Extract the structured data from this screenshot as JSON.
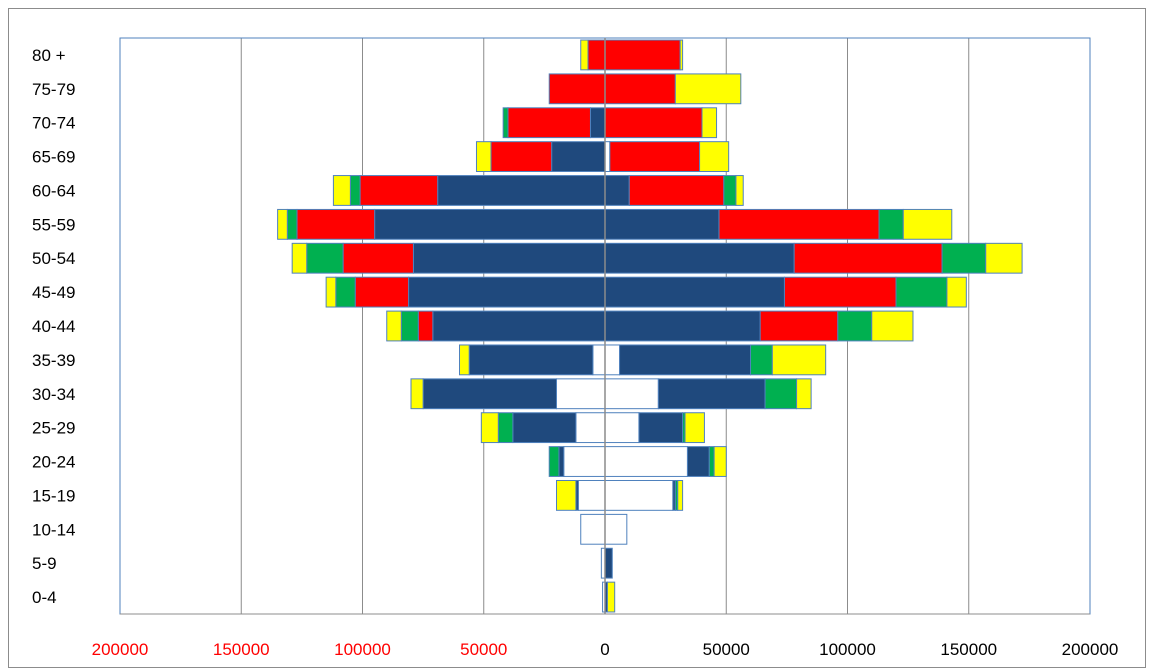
{
  "chart_data": {
    "type": "bar",
    "subtype": "population-pyramid-stacked",
    "orientation": "horizontal",
    "title": "",
    "xlabel": "",
    "ylabel": "",
    "xlim": [
      -200000,
      200000
    ],
    "grid": "vertical-major",
    "legend": "none",
    "categories": [
      "0-4",
      "5-9",
      "10-14",
      "15-19",
      "20-24",
      "25-29",
      "30-34",
      "35-39",
      "40-44",
      "45-49",
      "50-54",
      "55-59",
      "60-64",
      "65-69",
      "70-74",
      "75-79",
      "80 +"
    ],
    "x_ticks_left": [
      "200000",
      "150000",
      "100000",
      "50000"
    ],
    "x_ticks_right": [
      "0",
      "50000",
      "100000",
      "150000",
      "200000"
    ],
    "colors": {
      "white": "#ffffff",
      "blue": "#1f497d",
      "red": "#ff0000",
      "green": "#00b050",
      "yellow": "#ffff00",
      "left_tick_text": "#ff0000",
      "right_tick_text": "#000000",
      "outline": "#4f81bd",
      "gridline": "#8c8c8c"
    },
    "left_side": {
      "series": [
        {
          "color": "white",
          "values": [
            1000,
            1500,
            10000,
            11000,
            17000,
            12000,
            20000,
            5000,
            0,
            0,
            0,
            0,
            0,
            0,
            0,
            0,
            0
          ]
        },
        {
          "color": "blue",
          "values": [
            0,
            0,
            0,
            1000,
            2000,
            26000,
            55000,
            51000,
            71000,
            81000,
            79000,
            95000,
            69000,
            22000,
            6000,
            0,
            0
          ]
        },
        {
          "color": "red",
          "values": [
            0,
            0,
            0,
            0,
            0,
            0,
            0,
            0,
            6000,
            22000,
            29000,
            32000,
            32000,
            25000,
            34000,
            23000,
            7000
          ]
        },
        {
          "color": "green",
          "values": [
            0,
            0,
            0,
            0,
            4000,
            6000,
            0,
            0,
            7000,
            8000,
            15000,
            4000,
            4000,
            0,
            2000,
            0,
            0
          ]
        },
        {
          "color": "yellow",
          "values": [
            0,
            0,
            0,
            8000,
            0,
            7000,
            5000,
            4000,
            6000,
            4000,
            6000,
            4000,
            7000,
            6000,
            0,
            0,
            3000
          ]
        }
      ]
    },
    "right_side": {
      "series": [
        {
          "color": "white",
          "values": [
            0,
            0,
            9000,
            28000,
            34000,
            14000,
            22000,
            6000,
            0,
            0,
            0,
            0,
            0,
            2000,
            0,
            0,
            0
          ]
        },
        {
          "color": "blue",
          "values": [
            1000,
            3000,
            0,
            1000,
            9000,
            18000,
            44000,
            54000,
            64000,
            74000,
            78000,
            47000,
            10000,
            0,
            0,
            0,
            0
          ]
        },
        {
          "color": "red",
          "values": [
            0,
            0,
            0,
            0,
            0,
            0,
            0,
            0,
            32000,
            46000,
            61000,
            66000,
            39000,
            37000,
            40000,
            29000,
            31000
          ]
        },
        {
          "color": "green",
          "values": [
            0,
            0,
            0,
            1000,
            2000,
            1000,
            13000,
            9000,
            14000,
            21000,
            18000,
            10000,
            5000,
            0,
            0,
            0,
            0
          ]
        },
        {
          "color": "yellow",
          "values": [
            3000,
            0,
            0,
            2000,
            5000,
            8000,
            6000,
            22000,
            17000,
            8000,
            15000,
            20000,
            3000,
            12000,
            6000,
            27000,
            1000
          ]
        }
      ]
    }
  }
}
